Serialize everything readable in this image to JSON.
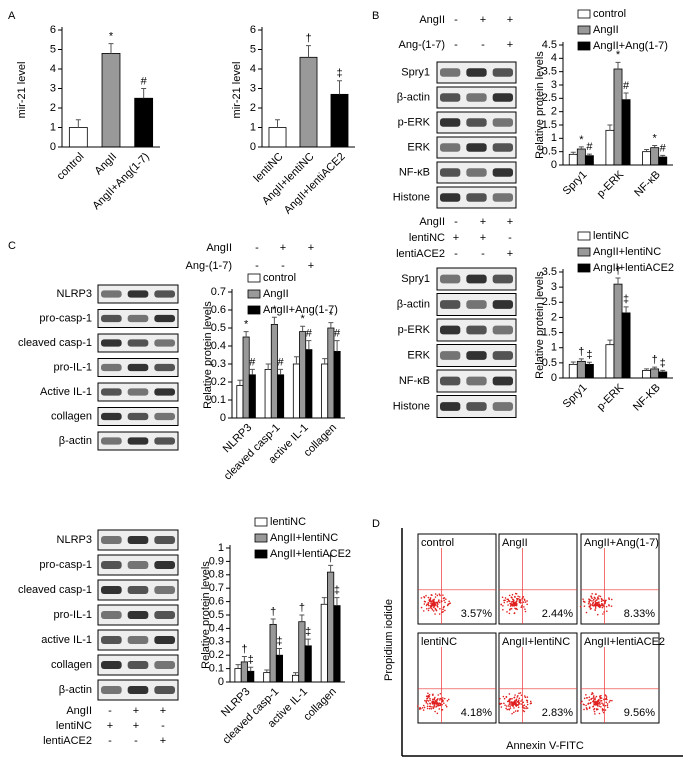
{
  "panel_labels": [
    "A",
    "B",
    "C",
    "D"
  ],
  "chart_data": [
    {
      "type": "bar",
      "ylabel": "mir-21 level",
      "categories": [
        "control",
        "AngII",
        "AngII+Ang(1-7)"
      ],
      "values": [
        1.0,
        4.8,
        2.5
      ],
      "errors": [
        0.4,
        0.5,
        0.5
      ],
      "colors": [
        "#ffffff",
        "#999999",
        "#000000"
      ],
      "annotations": [
        null,
        "*",
        "#"
      ],
      "ylim": [
        0,
        6
      ],
      "yticks": [
        0,
        1,
        2,
        3,
        4,
        5,
        6
      ]
    },
    {
      "type": "bar",
      "ylabel": "mir-21 level",
      "categories": [
        "lentiNC",
        "AngII+lentiNC",
        "AngII+lentiACE2"
      ],
      "values": [
        1.0,
        4.6,
        2.7
      ],
      "errors": [
        0.4,
        0.6,
        0.7
      ],
      "colors": [
        "#ffffff",
        "#999999",
        "#000000"
      ],
      "annotations": [
        null,
        "†",
        "‡"
      ],
      "ylim": [
        0,
        6
      ],
      "yticks": [
        0,
        1,
        2,
        3,
        4,
        5,
        6
      ]
    },
    {
      "type": "bar",
      "ylabel": "Relative protein levels",
      "categories": [
        "Spry1",
        "p-ERK",
        "NF-κB"
      ],
      "series": [
        {
          "name": "control",
          "color": "#ffffff",
          "values": [
            0.4,
            1.3,
            0.5
          ],
          "errors": [
            0.08,
            0.2,
            0.08
          ],
          "annotations": [
            null,
            null,
            null
          ]
        },
        {
          "name": "AngII",
          "color": "#999999",
          "values": [
            0.6,
            3.6,
            0.65
          ],
          "errors": [
            0.08,
            0.25,
            0.08
          ],
          "annotations": [
            "*",
            "*",
            "*"
          ]
        },
        {
          "name": "AngII+Ang(1-7)",
          "color": "#000000",
          "values": [
            0.35,
            2.45,
            0.3
          ],
          "errors": [
            0.06,
            0.25,
            0.06
          ],
          "annotations": [
            "#",
            "#",
            "#"
          ]
        }
      ],
      "ylim": [
        0,
        4.5
      ],
      "yticks": [
        0,
        0.5,
        1,
        1.5,
        2,
        2.5,
        3,
        3.5,
        4,
        4.5
      ]
    },
    {
      "type": "bar",
      "ylabel": "Relative protein levels",
      "categories": [
        "Spry1",
        "p-ERK",
        "NF-KB"
      ],
      "series": [
        {
          "name": "lentiNC",
          "color": "#ffffff",
          "values": [
            0.45,
            1.1,
            0.25
          ],
          "errors": [
            0.08,
            0.15,
            0.05
          ],
          "annotations": [
            null,
            null,
            null
          ]
        },
        {
          "name": "AngII+lentiNC",
          "color": "#999999",
          "values": [
            0.55,
            3.1,
            0.3
          ],
          "errors": [
            0.08,
            0.2,
            0.06
          ],
          "annotations": [
            "†",
            "†",
            "†"
          ]
        },
        {
          "name": "AngII+lentiACE2",
          "color": "#000000",
          "values": [
            0.45,
            2.15,
            0.2
          ],
          "errors": [
            0.07,
            0.2,
            0.05
          ],
          "annotations": [
            "‡",
            "‡",
            "‡"
          ]
        }
      ],
      "ylim": [
        0,
        3.5
      ],
      "yticks": [
        0,
        0.5,
        1,
        1.5,
        2,
        2.5,
        3,
        3.5
      ]
    },
    {
      "type": "bar",
      "ylabel": "Relative protein levels",
      "categories": [
        "NLRP3",
        "cleaved casp-1",
        "active IL-1",
        "collagen"
      ],
      "series": [
        {
          "name": "control",
          "color": "#ffffff",
          "values": [
            0.18,
            0.27,
            0.3,
            0.3
          ],
          "errors": [
            0.03,
            0.03,
            0.04,
            0.03
          ],
          "annotations": [
            null,
            null,
            null,
            null
          ]
        },
        {
          "name": "AngII",
          "color": "#999999",
          "values": [
            0.45,
            0.52,
            0.48,
            0.5
          ],
          "errors": [
            0.03,
            0.04,
            0.03,
            0.03
          ],
          "annotations": [
            "*",
            "*",
            "*",
            "*"
          ]
        },
        {
          "name": "AngII+Ang(1-7)",
          "color": "#000000",
          "values": [
            0.24,
            0.24,
            0.38,
            0.37
          ],
          "errors": [
            0.03,
            0.03,
            0.05,
            0.06
          ],
          "annotations": [
            "#",
            "#",
            "#",
            "#"
          ]
        }
      ],
      "ylim": [
        0,
        0.7
      ],
      "yticks": [
        0,
        0.1,
        0.2,
        0.3,
        0.4,
        0.5,
        0.6,
        0.7
      ]
    },
    {
      "type": "bar",
      "ylabel": "Relative protein levels",
      "categories": [
        "NLRP3",
        "cleaved casp-1",
        "active IL-1",
        "collagen"
      ],
      "series": [
        {
          "name": "lentiNC",
          "color": "#ffffff",
          "values": [
            0.1,
            0.07,
            0.05,
            0.58
          ],
          "errors": [
            0.03,
            0.02,
            0.02,
            0.05
          ],
          "annotations": [
            null,
            null,
            null,
            null
          ]
        },
        {
          "name": "AngII+lentiNC",
          "color": "#999999",
          "values": [
            0.15,
            0.43,
            0.45,
            0.82
          ],
          "errors": [
            0.04,
            0.04,
            0.05,
            0.05
          ],
          "annotations": [
            "†",
            "†",
            "†",
            "†"
          ]
        },
        {
          "name": "AngII+lentiACE2",
          "color": "#000000",
          "values": [
            0.08,
            0.2,
            0.27,
            0.57
          ],
          "errors": [
            0.03,
            0.05,
            0.05,
            0.06
          ],
          "annotations": [
            "‡",
            "‡",
            "‡",
            "‡"
          ]
        }
      ],
      "ylim": [
        0,
        1
      ],
      "yticks": [
        0,
        0.1,
        0.2,
        0.3,
        0.4,
        0.5,
        0.6,
        0.7,
        0.8,
        0.9,
        1
      ]
    }
  ],
  "blots": [
    {
      "conditions": [
        {
          "label": "AngII",
          "signs": [
            "-",
            "+",
            "+"
          ]
        },
        {
          "label": "Ang-(1-7)",
          "signs": [
            "-",
            "-",
            "+"
          ]
        }
      ],
      "rows": [
        "Spry1",
        "β-actin",
        "p-ERK",
        "ERK",
        "NF-κB",
        "Histone"
      ]
    },
    {
      "conditions": [
        {
          "label": "AngII",
          "signs": [
            "-",
            "+",
            "+"
          ]
        },
        {
          "label": "lentiNC",
          "signs": [
            "+",
            "+",
            "-"
          ]
        },
        {
          "label": "lentiACE2",
          "signs": [
            "-",
            "-",
            "+"
          ]
        }
      ],
      "rows": [
        "Spry1",
        "β-actin",
        "p-ERK",
        "ERK",
        "NF-κB",
        "Histone"
      ]
    },
    {
      "conditions": [
        {
          "label": "AngII",
          "signs": [
            "-",
            "+",
            "+"
          ]
        },
        {
          "label": "Ang-(1-7)",
          "signs": [
            "-",
            "-",
            "+"
          ]
        }
      ],
      "rows": [
        "NLRP3",
        "pro-casp-1",
        "cleaved casp-1",
        "pro-IL-1",
        "Active IL-1",
        "collagen",
        "β-actin"
      ]
    },
    {
      "conditions": [
        {
          "label": "AngII",
          "signs": [
            "-",
            "+",
            "+"
          ]
        },
        {
          "label": "lentiNC",
          "signs": [
            "+",
            "+",
            "-"
          ]
        },
        {
          "label": "lentiACE2",
          "signs": [
            "-",
            "-",
            "+"
          ]
        }
      ],
      "rows": [
        "NLRP3",
        "pro-casp-1",
        "cleaved casp-1",
        "pro-IL-1",
        "active IL-1",
        "collagen",
        "β-actin"
      ]
    }
  ],
  "flow": {
    "y_label": "Propidium iodide",
    "x_label": "Annexin V-FITC",
    "panels": [
      {
        "label": "control",
        "percent": "3.57%"
      },
      {
        "label": "AngII",
        "percent": "2.44%"
      },
      {
        "label": "AngII+Ang(1-7)",
        "percent": "8.33%"
      },
      {
        "label": "lentiNC",
        "percent": "4.18%"
      },
      {
        "label": "AngII+lentiNC",
        "percent": "2.83%"
      },
      {
        "label": "AngII+lentiACE2",
        "percent": "9.56%"
      }
    ]
  }
}
